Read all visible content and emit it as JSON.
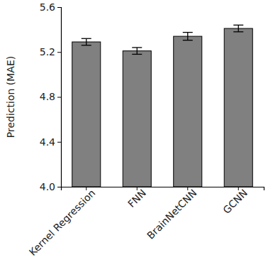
{
  "chart_data": {
    "type": "bar",
    "y_label": "Prediction (MAE)",
    "categories": [
      "Kernel Regression",
      "FNN",
      "BrainNetCNN",
      "GCNN"
    ],
    "values": [
      5.29,
      5.21,
      5.34,
      5.41
    ],
    "errors": [
      0.03,
      0.03,
      0.035,
      0.03
    ],
    "color": "#808080",
    "ylim": [
      4.0,
      5.6
    ],
    "yticks": [
      {
        "value": 4.0,
        "label": "4.0"
      },
      4.4,
      4.8,
      5.2,
      5.6
    ],
    "grid": false
  }
}
